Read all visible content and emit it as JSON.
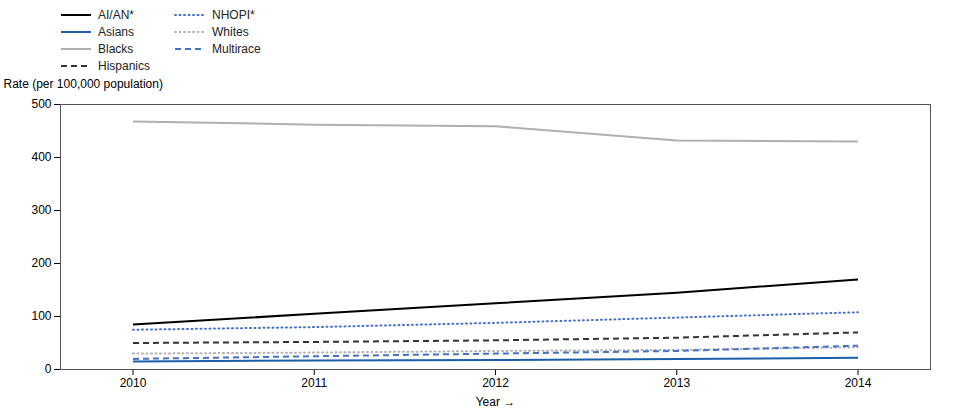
{
  "chart_data": {
    "type": "line",
    "xlabel": "Year",
    "ylabel": "Rate (per 100,000 population)",
    "x": [
      2010,
      2011,
      2012,
      2013,
      2014
    ],
    "series": [
      {
        "name": "AI/AN*",
        "color": "#000000",
        "line_style": "solid",
        "values": [
          85,
          105,
          125,
          145,
          170
        ]
      },
      {
        "name": "Asians",
        "color": "#1a5fa8",
        "line_style": "solid",
        "values": [
          15,
          17,
          18,
          20,
          22
        ]
      },
      {
        "name": "Blacks",
        "color": "#b0b0b0",
        "line_style": "solid",
        "values": [
          468,
          462,
          459,
          432,
          430
        ]
      },
      {
        "name": "Hispanics",
        "color": "#333333",
        "line_style": "dashed",
        "values": [
          50,
          52,
          55,
          60,
          70
        ]
      },
      {
        "name": "NHOPI*",
        "color": "#4472c4",
        "line_style": "dotted",
        "values": [
          75,
          80,
          88,
          98,
          108
        ]
      },
      {
        "name": "Whites",
        "color": "#b0b0b0",
        "line_style": "dotted",
        "values": [
          30,
          32,
          35,
          37,
          42
        ]
      },
      {
        "name": "Multirace",
        "color": "#4472c4",
        "line_style": "dashed",
        "values": [
          20,
          25,
          30,
          35,
          45
        ]
      }
    ],
    "xlim": [
      2009.6,
      2014.4
    ],
    "xticks": [
      2010,
      2011,
      2012,
      2013,
      2014
    ],
    "ylim": [
      0,
      500
    ],
    "yticks": [
      0,
      100,
      200,
      300,
      400,
      500
    ],
    "grid": false,
    "legend": "upper left"
  }
}
